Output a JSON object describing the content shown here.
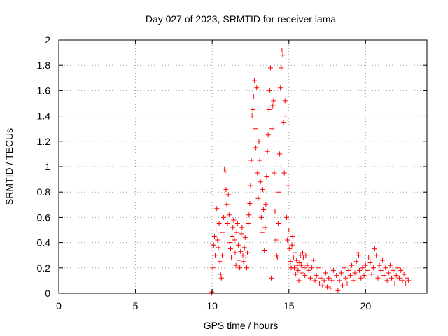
{
  "chart_data": {
    "type": "scatter",
    "title": "Day 027 of 2023, SRMTID for receiver lama",
    "xlabel": "GPS time / hours",
    "ylabel": "SRMTID / TECUs",
    "xlim": [
      0,
      24
    ],
    "ylim": [
      0,
      2
    ],
    "x_ticks": [
      0,
      5,
      10,
      15,
      20
    ],
    "x_tick_labels": [
      "0",
      "5",
      "10",
      "15",
      "20"
    ],
    "y_ticks": [
      0,
      0.2,
      0.4,
      0.6,
      0.8,
      1,
      1.2,
      1.4,
      1.6,
      1.8,
      2
    ],
    "y_tick_labels": [
      "0",
      "0.2",
      "0.4",
      "0.6",
      "0.8",
      "1",
      "1.2",
      "1.4",
      "1.6",
      "1.8",
      "2"
    ],
    "grid": true,
    "marker": "+",
    "color": "#ff0000",
    "series": [
      {
        "name": "SRMTID",
        "points": [
          [
            9.95,
            0.0
          ],
          [
            9.98,
            0.01
          ],
          [
            10.05,
            0.2
          ],
          [
            10.1,
            0.38
          ],
          [
            10.15,
            0.45
          ],
          [
            10.2,
            0.3
          ],
          [
            10.25,
            0.5
          ],
          [
            10.3,
            0.67
          ],
          [
            10.35,
            0.42
          ],
          [
            10.4,
            0.36
          ],
          [
            10.45,
            0.55
          ],
          [
            10.5,
            0.25
          ],
          [
            10.55,
            0.15
          ],
          [
            10.6,
            0.12
          ],
          [
            10.65,
            0.3
          ],
          [
            10.7,
            0.48
          ],
          [
            10.75,
            0.6
          ],
          [
            10.8,
            0.98
          ],
          [
            10.85,
            0.96
          ],
          [
            10.9,
            0.82
          ],
          [
            10.95,
            0.7
          ],
          [
            11.0,
            0.55
          ],
          [
            11.05,
            0.78
          ],
          [
            11.1,
            0.62
          ],
          [
            11.15,
            0.4
          ],
          [
            11.2,
            0.35
          ],
          [
            11.25,
            0.28
          ],
          [
            11.3,
            0.45
          ],
          [
            11.35,
            0.52
          ],
          [
            11.4,
            0.58
          ],
          [
            11.45,
            0.42
          ],
          [
            11.5,
            0.32
          ],
          [
            11.55,
            0.22
          ],
          [
            11.6,
            0.48
          ],
          [
            11.65,
            0.55
          ],
          [
            11.7,
            0.38
          ],
          [
            11.75,
            0.26
          ],
          [
            11.8,
            0.2
          ],
          [
            11.85,
            0.33
          ],
          [
            11.9,
            0.47
          ],
          [
            11.95,
            0.52
          ],
          [
            12.0,
            0.3
          ],
          [
            12.05,
            0.25
          ],
          [
            12.1,
            0.36
          ],
          [
            12.15,
            0.44
          ],
          [
            12.2,
            0.28
          ],
          [
            12.25,
            0.2
          ],
          [
            12.3,
            0.32
          ],
          [
            12.35,
            0.55
          ],
          [
            12.4,
            0.62
          ],
          [
            12.45,
            0.71
          ],
          [
            12.5,
            0.85
          ],
          [
            12.55,
            1.05
          ],
          [
            12.6,
            1.4
          ],
          [
            12.65,
            1.45
          ],
          [
            12.7,
            1.55
          ],
          [
            12.75,
            1.68
          ],
          [
            12.8,
            1.3
          ],
          [
            12.85,
            1.15
          ],
          [
            12.9,
            1.62
          ],
          [
            12.95,
            0.95
          ],
          [
            13.0,
            0.75
          ],
          [
            13.05,
            1.2
          ],
          [
            13.1,
            1.05
          ],
          [
            13.15,
            0.88
          ],
          [
            13.2,
            0.6
          ],
          [
            13.25,
            0.48
          ],
          [
            13.3,
            0.82
          ],
          [
            13.35,
            0.66
          ],
          [
            13.4,
            0.34
          ],
          [
            13.45,
            0.52
          ],
          [
            13.5,
            0.7
          ],
          [
            13.55,
            0.92
          ],
          [
            13.6,
            1.12
          ],
          [
            13.65,
            1.25
          ],
          [
            13.7,
            1.45
          ],
          [
            13.75,
            1.6
          ],
          [
            13.8,
            1.78
          ],
          [
            13.85,
            0.12
          ],
          [
            13.9,
            1.3
          ],
          [
            13.95,
            1.48
          ],
          [
            14.0,
            1.52
          ],
          [
            14.05,
            0.95
          ],
          [
            14.1,
            0.65
          ],
          [
            14.15,
            0.42
          ],
          [
            14.2,
            0.3
          ],
          [
            14.25,
            0.28
          ],
          [
            14.3,
            0.55
          ],
          [
            14.35,
            0.8
          ],
          [
            14.4,
            1.1
          ],
          [
            14.45,
            1.62
          ],
          [
            14.5,
            1.78
          ],
          [
            14.55,
            1.92
          ],
          [
            14.6,
            1.88
          ],
          [
            14.65,
            1.35
          ],
          [
            14.7,
            0.95
          ],
          [
            14.75,
            1.52
          ],
          [
            14.8,
            1.4
          ],
          [
            14.85,
            0.6
          ],
          [
            14.9,
            0.42
          ],
          [
            14.95,
            0.85
          ],
          [
            15.0,
            0.5
          ],
          [
            15.05,
            0.35
          ],
          [
            15.1,
            0.25
          ],
          [
            15.15,
            0.2
          ],
          [
            15.2,
            0.38
          ],
          [
            15.25,
            0.45
          ],
          [
            15.3,
            0.28
          ],
          [
            15.35,
            0.2
          ],
          [
            15.4,
            0.32
          ],
          [
            15.45,
            0.15
          ],
          [
            15.5,
            0.26
          ],
          [
            15.55,
            0.22
          ],
          [
            15.6,
            0.18
          ],
          [
            15.65,
            0.1
          ],
          [
            15.7,
            0.24
          ],
          [
            15.75,
            0.3
          ],
          [
            15.8,
            0.22
          ],
          [
            15.85,
            0.16
          ],
          [
            15.9,
            0.32
          ],
          [
            15.95,
            0.28
          ],
          [
            16.0,
            0.2
          ],
          [
            16.05,
            0.14
          ],
          [
            16.1,
            0.3
          ],
          [
            16.2,
            0.22
          ],
          [
            16.3,
            0.18
          ],
          [
            16.4,
            0.12
          ],
          [
            16.5,
            0.2
          ],
          [
            16.6,
            0.26
          ],
          [
            16.7,
            0.1
          ],
          [
            16.8,
            0.14
          ],
          [
            16.9,
            0.2
          ],
          [
            17.0,
            0.08
          ],
          [
            17.1,
            0.12
          ],
          [
            17.2,
            0.06
          ],
          [
            17.3,
            0.1
          ],
          [
            17.4,
            0.16
          ],
          [
            17.5,
            0.05
          ],
          [
            17.6,
            0.12
          ],
          [
            17.7,
            0.04
          ],
          [
            17.8,
            0.1
          ],
          [
            17.9,
            0.18
          ],
          [
            18.0,
            0.08
          ],
          [
            18.1,
            0.14
          ],
          [
            18.2,
            0.02
          ],
          [
            18.3,
            0.1
          ],
          [
            18.4,
            0.16
          ],
          [
            18.5,
            0.06
          ],
          [
            18.6,
            0.2
          ],
          [
            18.7,
            0.12
          ],
          [
            18.8,
            0.08
          ],
          [
            18.9,
            0.18
          ],
          [
            19.0,
            0.14
          ],
          [
            19.1,
            0.22
          ],
          [
            19.2,
            0.1
          ],
          [
            19.3,
            0.16
          ],
          [
            19.4,
            0.25
          ],
          [
            19.5,
            0.32
          ],
          [
            19.55,
            0.3
          ],
          [
            19.6,
            0.18
          ],
          [
            19.7,
            0.12
          ],
          [
            19.8,
            0.2
          ],
          [
            19.9,
            0.14
          ],
          [
            20.0,
            0.22
          ],
          [
            20.1,
            0.18
          ],
          [
            20.2,
            0.28
          ],
          [
            20.3,
            0.24
          ],
          [
            20.4,
            0.15
          ],
          [
            20.5,
            0.2
          ],
          [
            20.6,
            0.35
          ],
          [
            20.7,
            0.3
          ],
          [
            20.8,
            0.12
          ],
          [
            20.9,
            0.22
          ],
          [
            21.0,
            0.18
          ],
          [
            21.1,
            0.26
          ],
          [
            21.2,
            0.14
          ],
          [
            21.3,
            0.2
          ],
          [
            21.4,
            0.1
          ],
          [
            21.5,
            0.16
          ],
          [
            21.6,
            0.22
          ],
          [
            21.7,
            0.12
          ],
          [
            21.8,
            0.18
          ],
          [
            21.9,
            0.08
          ],
          [
            22.0,
            0.14
          ],
          [
            22.1,
            0.2
          ],
          [
            22.2,
            0.12
          ],
          [
            22.3,
            0.18
          ],
          [
            22.4,
            0.1
          ],
          [
            22.5,
            0.15
          ],
          [
            22.6,
            0.08
          ],
          [
            22.7,
            0.12
          ],
          [
            22.8,
            0.1
          ]
        ]
      }
    ]
  }
}
